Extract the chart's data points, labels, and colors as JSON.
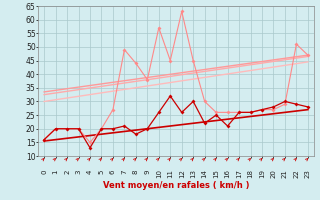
{
  "x": [
    0,
    1,
    2,
    3,
    4,
    5,
    6,
    7,
    8,
    9,
    10,
    11,
    12,
    13,
    14,
    15,
    16,
    17,
    18,
    19,
    20,
    21,
    22,
    23
  ],
  "wind_mean": [
    16,
    20,
    20,
    20,
    13,
    20,
    20,
    21,
    18,
    20,
    26,
    32,
    26,
    30,
    22,
    25,
    21,
    26,
    26,
    27,
    28,
    30,
    29,
    28
  ],
  "wind_gust": [
    16,
    20,
    20,
    20,
    15,
    20,
    27,
    49,
    44,
    38,
    57,
    45,
    63,
    45,
    30,
    26,
    26,
    26,
    26,
    27,
    27,
    29,
    51,
    47
  ],
  "trend_mean": [
    15.5,
    27.0
  ],
  "trend_gust1": [
    30.0,
    44.5
  ],
  "trend_gust2": [
    32.5,
    46.5
  ],
  "trend_gust3": [
    33.5,
    47.0
  ],
  "ylim": [
    10,
    65
  ],
  "yticks": [
    10,
    15,
    20,
    25,
    30,
    35,
    40,
    45,
    50,
    55,
    60,
    65
  ],
  "xlabel": "Vent moyen/en rafales ( km/h )",
  "bg_color": "#d4edf0",
  "grid_color": "#aac8cc",
  "line_mean_color": "#cc0000",
  "line_gust_color": "#ff8888",
  "trend_mean_color": "#cc0000",
  "trend_gust1_color": "#ffbbbb",
  "trend_gust2_color": "#ffaaaa",
  "trend_gust3_color": "#ff9999"
}
